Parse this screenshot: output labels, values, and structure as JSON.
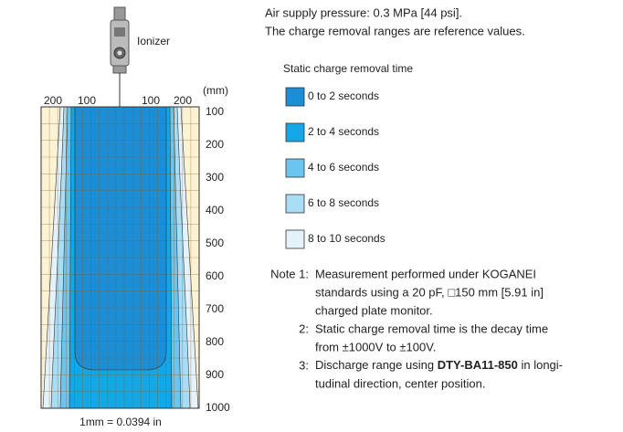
{
  "header": {
    "lines": [
      "Air supply pressure: 0.3 MPa [44 psi].",
      "The charge removal ranges are reference values."
    ]
  },
  "ionizer_label": "Ionizer",
  "diagram": {
    "unit": "(mm)",
    "x_labels": [
      200,
      100,
      100,
      200
    ],
    "y_labels": [
      100,
      200,
      300,
      400,
      500,
      600,
      700,
      800,
      900,
      1000
    ],
    "conversion": "1mm = 0.0394 in"
  },
  "legend": {
    "title": "Static charge removal time",
    "items": [
      {
        "label": "0 to 2 seconds",
        "color": "#1c8ed6"
      },
      {
        "label": "2 to 4 seconds",
        "color": "#14a7e6"
      },
      {
        "label": "4 to 6 seconds",
        "color": "#6cc5ee"
      },
      {
        "label": "6 to 8 seconds",
        "color": "#a9dcf5"
      },
      {
        "label": "8 to 10 seconds",
        "color": "#e3f2fb"
      }
    ]
  },
  "notes": [
    {
      "number": "Note 1:",
      "lines": [
        "Measurement performed under KOGANEI",
        "standards using a 20 pF, □150 mm [5.91 in]",
        "charged plate monitor."
      ]
    },
    {
      "number": "2:",
      "lines": [
        "Static charge removal time is the decay time",
        "from ±1000V to ±100V."
      ]
    },
    {
      "number": "3:",
      "first": {
        "before": "Discharge range using ",
        "bold": "DTY-BA11-850",
        "after": " in longi-"
      },
      "lines": [
        "tudinal direction, center position."
      ]
    }
  ]
}
